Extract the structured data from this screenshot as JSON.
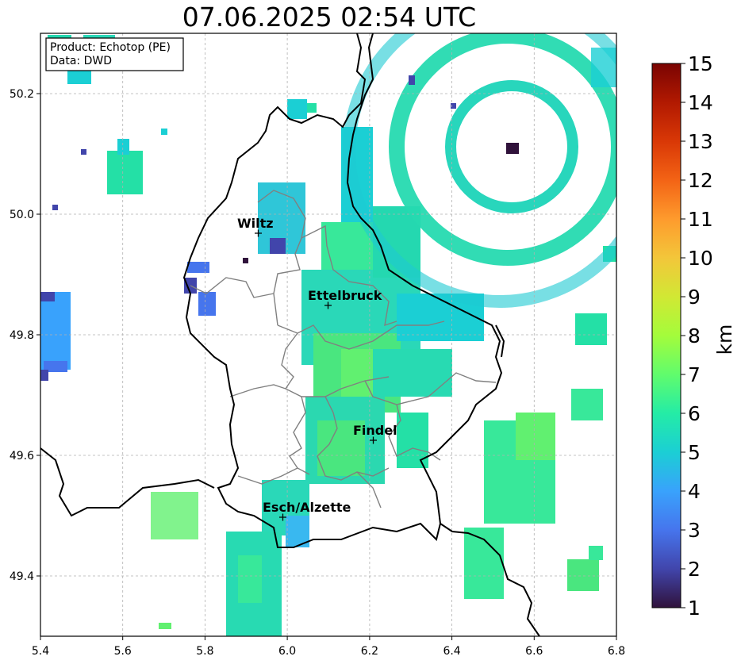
{
  "title": "07.06.2025 02:54 UTC",
  "info_box": {
    "line1": "Product: Echotop (PE)",
    "line2": "Data: DWD"
  },
  "map": {
    "lon_range": [
      5.4,
      6.8
    ],
    "lat_range": [
      49.3,
      50.3
    ],
    "x_ticks": [
      "5.4",
      "5.6",
      "5.8",
      "6.0",
      "6.2",
      "6.4",
      "6.6",
      "6.8"
    ],
    "y_ticks": [
      "50.2",
      "50.0",
      "49.8",
      "49.6",
      "49.4"
    ],
    "grid": true,
    "cities": [
      {
        "name": "Wiltz",
        "lon": 5.93,
        "lat": 49.97
      },
      {
        "name": "Ettelbruck",
        "lon": 6.1,
        "lat": 49.85
      },
      {
        "name": "Findel",
        "lon": 6.21,
        "lat": 49.63
      },
      {
        "name": "Esch/Alzette",
        "lon": 5.99,
        "lat": 49.5
      }
    ]
  },
  "colorbar": {
    "label": "km",
    "min": 1,
    "max": 15,
    "ticks": [
      "1",
      "2",
      "3",
      "4",
      "5",
      "6",
      "7",
      "8",
      "9",
      "10",
      "11",
      "12",
      "13",
      "14",
      "15"
    ],
    "colors": [
      "#30123b",
      "#4145ab",
      "#4675ed",
      "#39a2fc",
      "#1bcfd4",
      "#24eca6",
      "#61fc6c",
      "#a4fc3b",
      "#d1e834",
      "#f3c63a",
      "#fe9b2d",
      "#f36315",
      "#d93806",
      "#b11901",
      "#7a0402"
    ]
  }
}
